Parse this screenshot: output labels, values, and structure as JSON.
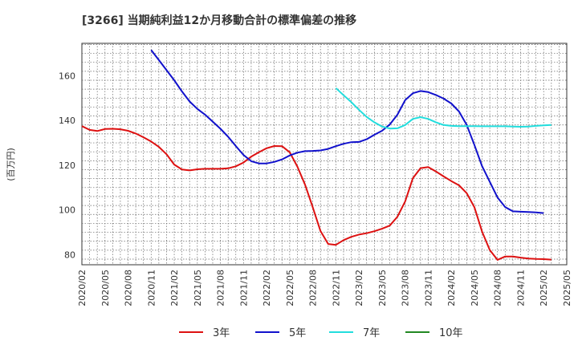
{
  "chart_data": {
    "type": "line",
    "title": "[3266]  当期純利益12か月移動合計の標準偏差の推移",
    "ylabel": "(百万円)",
    "xlabel": "",
    "ylim": [
      75.5,
      174.5
    ],
    "yticks": [
      80,
      100,
      120,
      140,
      160
    ],
    "x_tick_labels": [
      "2020/02",
      "2020/05",
      "2020/08",
      "2020/11",
      "2021/02",
      "2021/05",
      "2021/08",
      "2021/11",
      "2022/02",
      "2022/05",
      "2022/08",
      "2022/11",
      "2023/02",
      "2023/05",
      "2023/08",
      "2023/11",
      "2024/02",
      "2024/05",
      "2024/08",
      "2024/11",
      "2025/02",
      "2025/05"
    ],
    "grid": true,
    "legend_position": "bottom",
    "series": [
      {
        "name": "3年",
        "color": "#dd1111",
        "start_index": 0,
        "values": [
          137.5,
          135.8,
          135.3,
          136.2,
          136.3,
          136.1,
          135.4,
          134.2,
          132.5,
          130.6,
          128.2,
          124.9,
          120.3,
          118.1,
          117.7,
          118.2,
          118.4,
          118.4,
          118.4,
          118.6,
          119.5,
          121.2,
          123.8,
          125.8,
          127.6,
          128.6,
          128.5,
          125.8,
          119.4,
          111.3,
          101.2,
          90.6,
          84.8,
          84.4,
          86.5,
          88.0,
          89.0,
          89.6,
          90.5,
          91.6,
          93.0,
          97.0,
          103.8,
          114.2,
          118.7,
          119.2,
          117.2,
          115.0,
          112.9,
          111.0,
          107.5,
          101.2,
          90.3,
          82.1,
          77.7,
          79.2,
          79.2,
          78.7,
          78.3,
          78.1,
          78.0,
          77.8
        ]
      },
      {
        "name": "5年",
        "color": "#1111cc",
        "start_index": 9,
        "values": [
          171.5,
          167.0,
          162.5,
          158.0,
          153.0,
          148.5,
          145.2,
          142.6,
          139.5,
          136.3,
          132.7,
          128.6,
          124.6,
          121.8,
          120.8,
          120.8,
          121.5,
          122.6,
          124.4,
          125.6,
          126.3,
          126.4,
          126.6,
          127.3,
          128.5,
          129.6,
          130.3,
          130.4,
          131.6,
          133.6,
          135.4,
          138.2,
          142.6,
          149.1,
          152.2,
          153.2,
          152.7,
          151.4,
          149.8,
          147.6,
          144.0,
          138.0,
          129.0,
          119.6,
          112.6,
          105.6,
          101.3,
          99.4,
          99.2,
          99.1,
          98.9,
          98.6
        ]
      },
      {
        "name": "7年",
        "color": "#22dddd",
        "start_index": 33,
        "values": [
          154.5,
          151.3,
          148.2,
          144.8,
          141.6,
          139.2,
          137.3,
          136.4,
          136.5,
          138.0,
          140.7,
          141.5,
          140.7,
          139.2,
          138.0,
          137.6,
          137.5,
          137.5,
          137.5,
          137.4,
          137.4,
          137.4,
          137.4,
          137.3,
          137.2,
          137.3,
          137.6,
          137.8,
          138.0
        ]
      },
      {
        "name": "10年",
        "color": "#228822",
        "start_index": 0,
        "values": []
      }
    ]
  }
}
